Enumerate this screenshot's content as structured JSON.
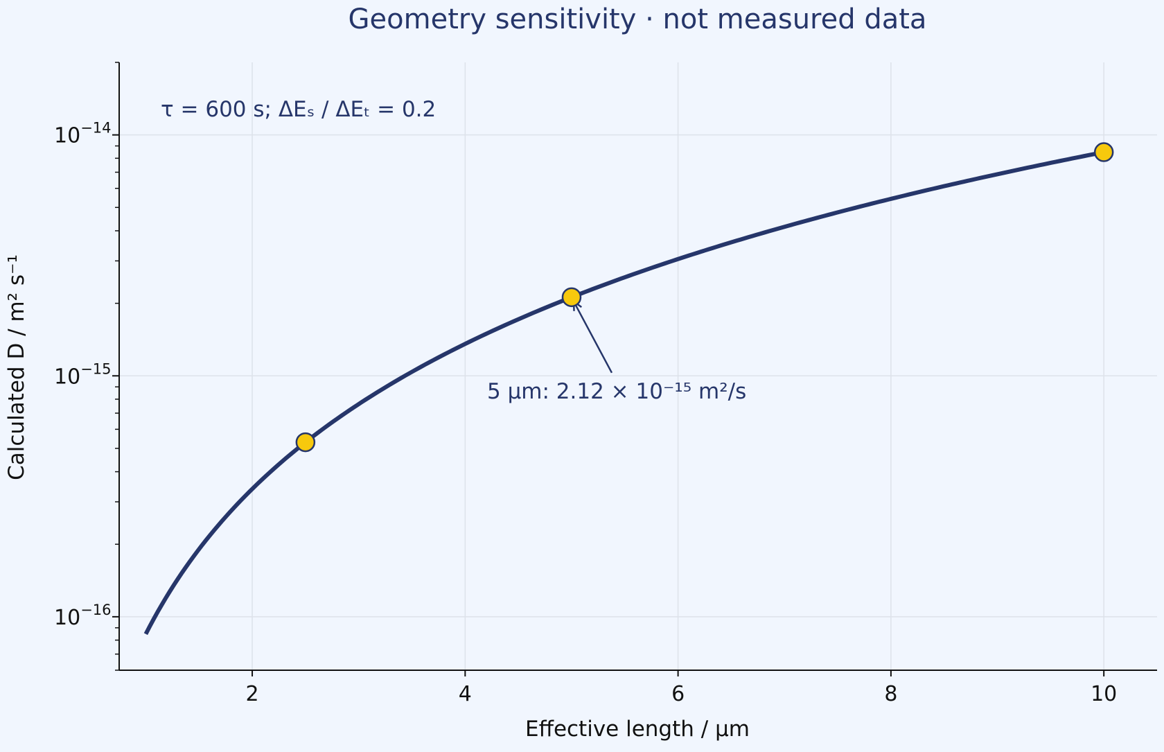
{
  "chart_data": {
    "type": "line",
    "title": "Geometry sensitivity · not measured data",
    "xlabel": "Effective length / µm",
    "ylabel": "Calculated D / m² s⁻¹",
    "xlim": [
      0.75,
      10.5
    ],
    "ylim": [
      6e-17,
      2e-14
    ],
    "yscale": "log",
    "grid": true,
    "x_ticks": [
      2,
      4,
      6,
      8,
      10
    ],
    "y_ticks": [
      {
        "value": 1e-16,
        "base": "10",
        "exponent": "−16"
      },
      {
        "value": 1e-15,
        "base": "10",
        "exponent": "−15"
      },
      {
        "value": 1e-14,
        "base": "10",
        "exponent": "−14"
      }
    ],
    "curve": {
      "relation": "D = 2.12e-15 × (L / 5)²",
      "x_start": 1.0,
      "x_end": 10.0,
      "reference_x": 5,
      "reference_y": 2.12e-15,
      "exponent": 2
    },
    "markers": [
      {
        "x": 2.5,
        "y": 5.3e-16
      },
      {
        "x": 5,
        "y": 2.12e-15
      },
      {
        "x": 10,
        "y": 8.48e-15
      }
    ],
    "parameter_note": "τ = 600 s; ΔEₛ / ΔEₜ = 0.2",
    "annotation": {
      "text": "5 µm: 2.12 × 10⁻¹⁵ m²/s",
      "target_x": 5,
      "target_y": 2.12e-15
    },
    "colors": {
      "background": "#f1f6fe",
      "line": "#26366a",
      "marker_fill": "#f7c90d",
      "marker_edge": "#26366a",
      "text": "#26366a",
      "axis": "#111111",
      "grid": "#dde2ea"
    }
  }
}
